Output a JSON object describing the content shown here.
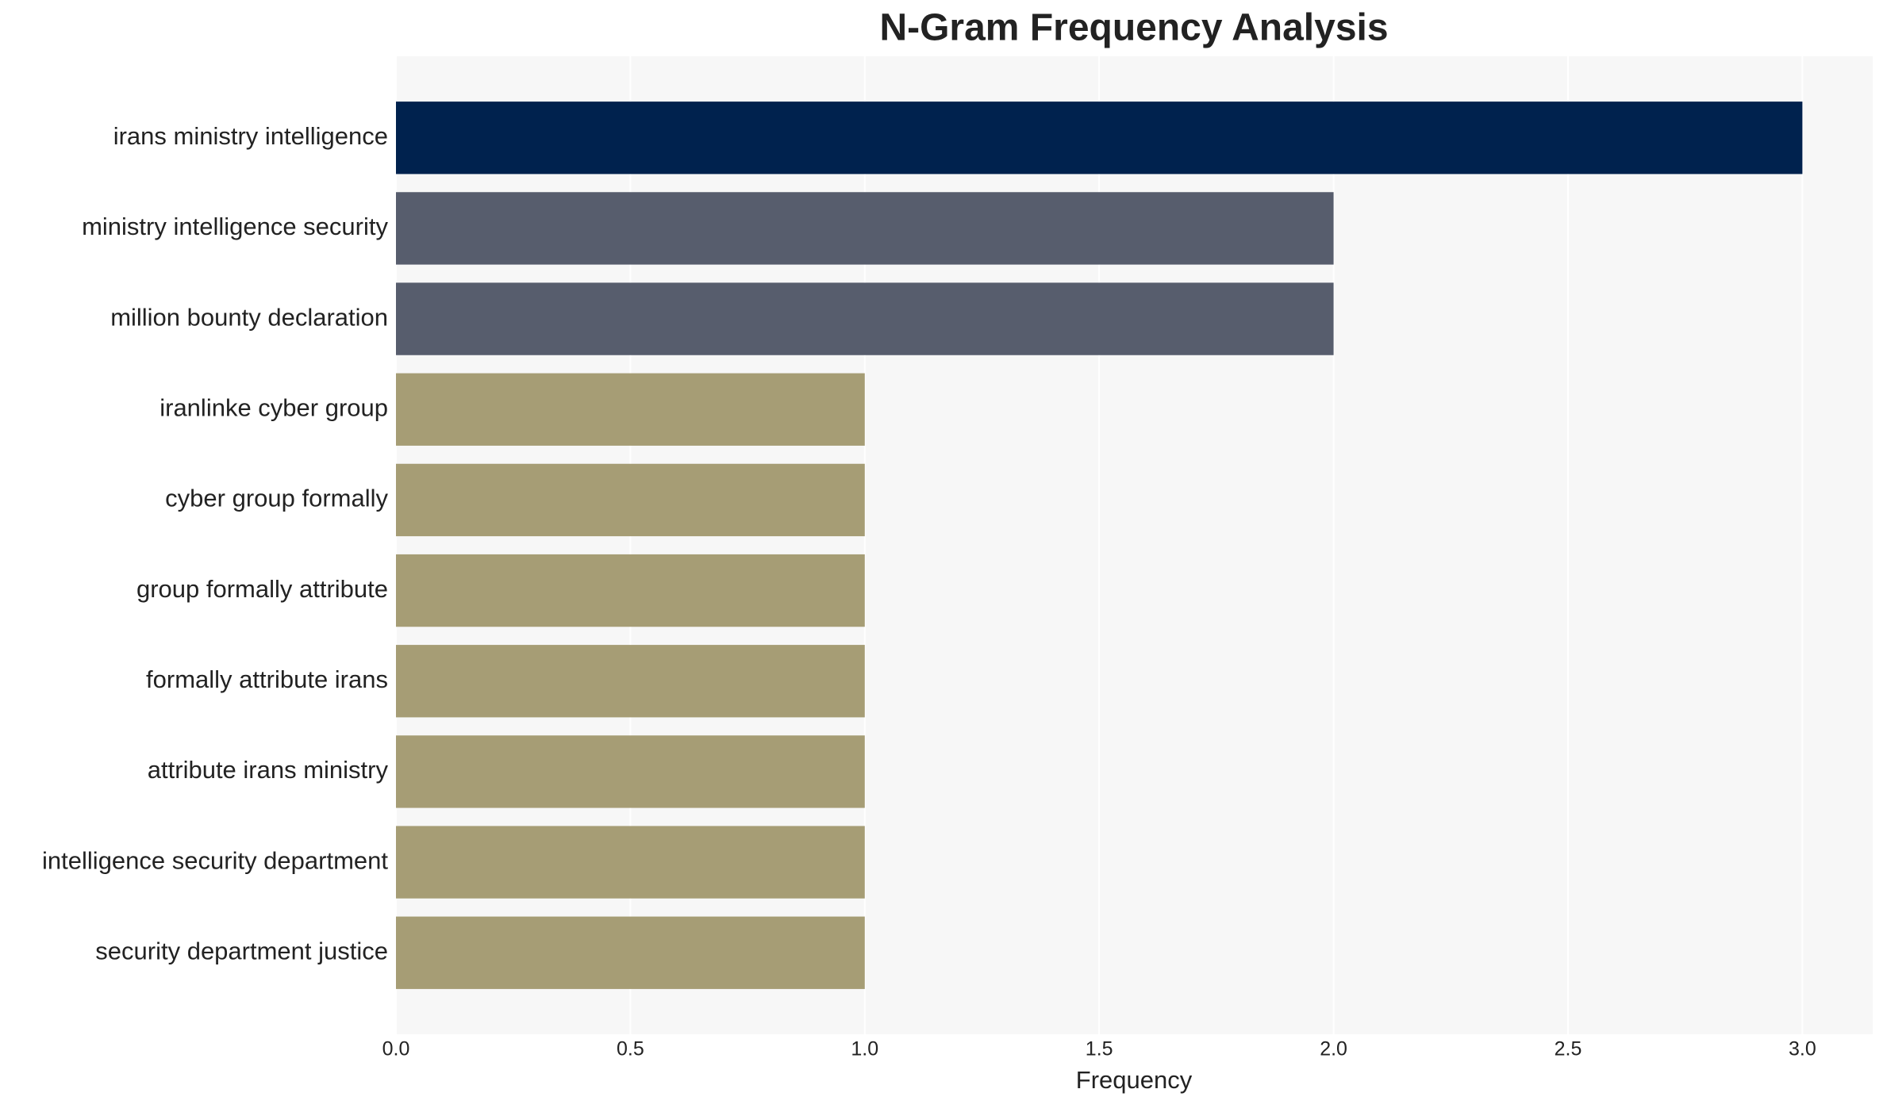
{
  "chart_data": {
    "type": "bar",
    "orientation": "horizontal",
    "title": "N-Gram Frequency Analysis",
    "xlabel": "Frequency",
    "categories": [
      "irans ministry intelligence",
      "ministry intelligence security",
      "million bounty declaration",
      "iranlinke cyber group",
      "cyber group formally",
      "group formally attribute",
      "formally attribute irans",
      "attribute irans ministry",
      "intelligence security department",
      "security department justice"
    ],
    "values": [
      3,
      2,
      2,
      1,
      1,
      1,
      1,
      1,
      1,
      1
    ],
    "colors": [
      "#00224e",
      "#575d6d",
      "#575d6d",
      "#a69d75",
      "#a69d75",
      "#a69d75",
      "#a69d75",
      "#a69d75",
      "#a69d75",
      "#a69d75"
    ],
    "xlim": [
      0,
      3.15
    ],
    "xticks": [
      {
        "value": 0,
        "label": "0.0"
      },
      {
        "value": 0.5,
        "label": "0.5"
      },
      {
        "value": 1,
        "label": "1.0"
      },
      {
        "value": 1.5,
        "label": "1.5"
      },
      {
        "value": 2,
        "label": "2.0"
      },
      {
        "value": 2.5,
        "label": "2.5"
      },
      {
        "value": 3,
        "label": "3.0"
      }
    ],
    "grid": true
  }
}
